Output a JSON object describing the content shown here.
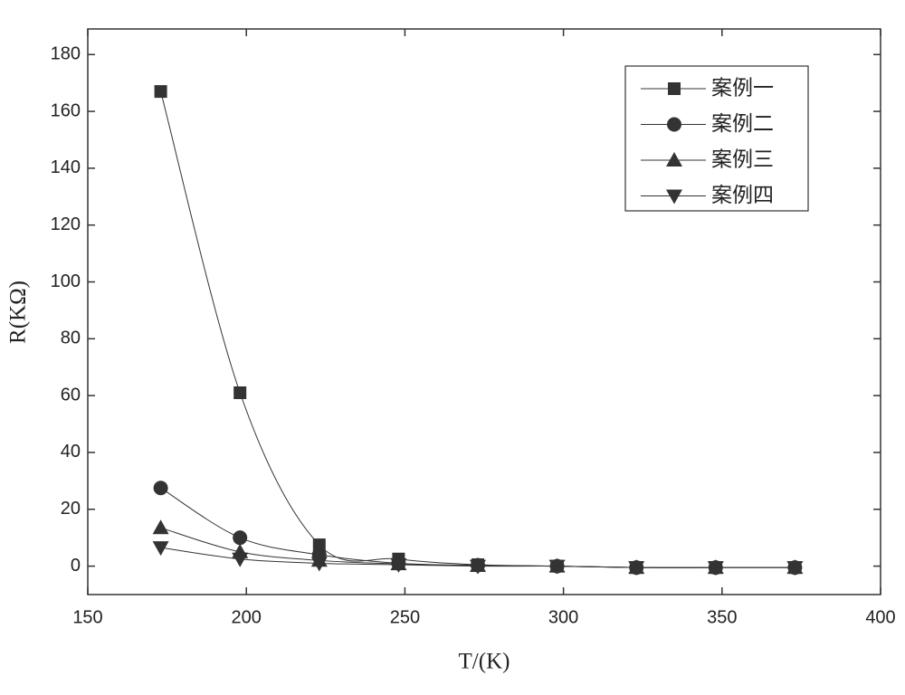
{
  "chart_data": {
    "type": "line",
    "x_label": "T/(K)",
    "y_label": "R(KΩ)",
    "x": [
      173,
      198,
      223,
      248,
      273,
      298,
      323,
      348,
      373
    ],
    "series": [
      {
        "name": "案例一",
        "color": "#333333",
        "marker": "square",
        "values": [
          167,
          61,
          7.5,
          2.5,
          0.5,
          0,
          -0.5,
          -0.5,
          -0.5
        ]
      },
      {
        "name": "案例二",
        "color": "#333333",
        "marker": "circle",
        "values": [
          27.5,
          10,
          4,
          1,
          0.3,
          0,
          -0.5,
          -0.5,
          -0.5
        ]
      },
      {
        "name": "案例三",
        "color": "#333333",
        "marker": "triangle-up",
        "values": [
          13.5,
          5,
          2,
          0.8,
          0.2,
          0,
          -0.5,
          -0.5,
          -0.5
        ]
      },
      {
        "name": "案例四",
        "color": "#333333",
        "marker": "triangle-down",
        "values": [
          6.5,
          2.5,
          1,
          0.5,
          0,
          0,
          -0.5,
          -0.5,
          -0.5
        ]
      }
    ],
    "xlim": [
      150,
      400
    ],
    "xticks": [
      150,
      200,
      250,
      300,
      350,
      400
    ],
    "ylim": [
      -10,
      189
    ],
    "yticks": [
      0,
      20,
      40,
      60,
      80,
      100,
      120,
      140,
      160,
      180
    ],
    "legend": "top-right",
    "grid": false
  }
}
